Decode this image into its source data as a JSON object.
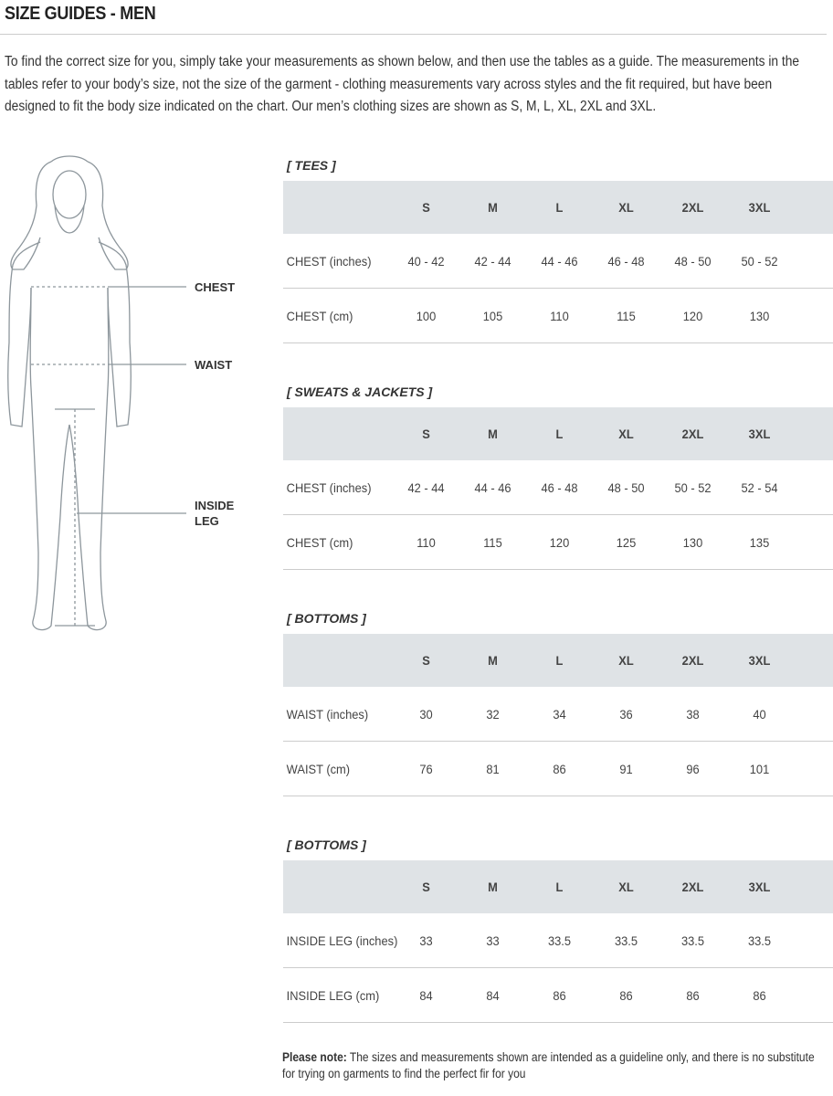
{
  "title": "SIZE GUIDES - MEN",
  "intro": "To find the correct size for you, simply take your measurements as shown below, and then use the tables as a guide. The measurements in the tables refer to your body’s size, not the size of the garment - clothing measurements vary across styles and the fit required, but have been designed to fit the body size indicated on the chart. Our men’s clothing sizes are shown as S, M, L, XL, 2XL and 3XL.",
  "figure_labels": [
    "CHEST",
    "WAIST",
    "INSIDE LEG"
  ],
  "tables": [
    {
      "heading": "[ TEES ]",
      "columns": [
        "S",
        "M",
        "L",
        "XL",
        "2XL",
        "3XL"
      ],
      "rows": [
        [
          "CHEST (inches)",
          "40 - 42",
          "42 - 44",
          "44 - 46",
          "46 - 48",
          "48 - 50",
          "50 - 52"
        ],
        [
          "CHEST (cm)",
          "100",
          "105",
          "110",
          "115",
          "120",
          "130"
        ]
      ]
    },
    {
      "heading": "[ SWEATS & JACKETS ]",
      "columns": [
        "S",
        "M",
        "L",
        "XL",
        "2XL",
        "3XL"
      ],
      "rows": [
        [
          "CHEST (inches)",
          "42 - 44",
          "44 - 46",
          "46 - 48",
          "48 - 50",
          "50 - 52",
          "52 - 54"
        ],
        [
          "CHEST (cm)",
          "110",
          "115",
          "120",
          "125",
          "130",
          "135"
        ]
      ]
    },
    {
      "heading": "[ BOTTOMS ]",
      "columns": [
        "S",
        "M",
        "L",
        "XL",
        "2XL",
        "3XL"
      ],
      "rows": [
        [
          "WAIST (inches)",
          "30",
          "32",
          "34",
          "36",
          "38",
          "40"
        ],
        [
          "WAIST (cm)",
          "76",
          "81",
          "86",
          "91",
          "96",
          "101"
        ]
      ]
    },
    {
      "heading": "[ BOTTOMS ]",
      "columns": [
        "S",
        "M",
        "L",
        "XL",
        "2XL",
        "3XL"
      ],
      "rows": [
        [
          "INSIDE LEG (inches)",
          "33",
          "33",
          "33.5",
          "33.5",
          "33.5",
          "33.5"
        ],
        [
          "INSIDE LEG (cm)",
          "84",
          "84",
          "86",
          "86",
          "86",
          "86"
        ]
      ]
    }
  ],
  "note": {
    "label": "Please note:",
    "text": "The sizes and measurements shown are intended as a guideline only, and there is no substitute for trying on garments to find the perfect fir for you"
  }
}
